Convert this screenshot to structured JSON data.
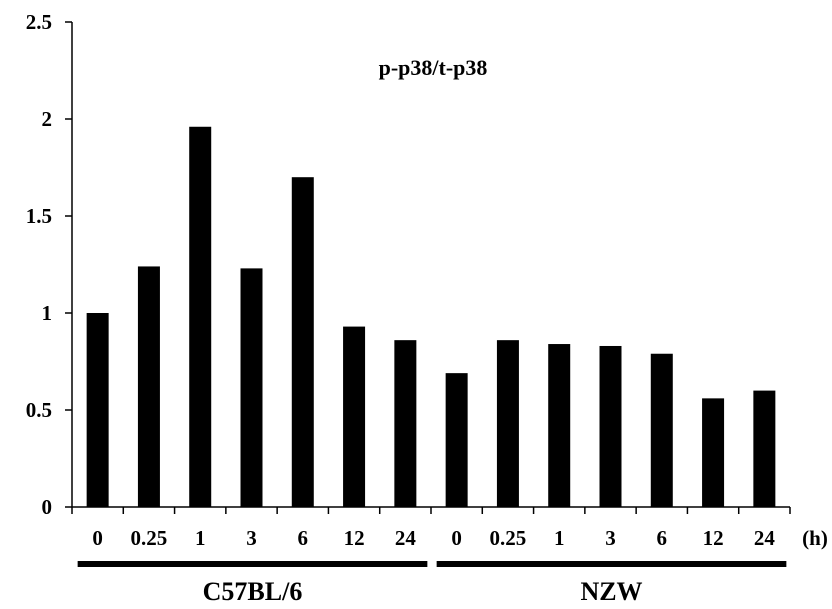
{
  "chart_data": {
    "type": "bar",
    "title": "p-p38/t-p38",
    "xlabel": "",
    "ylabel": "",
    "x_unit": "(h)",
    "ylim": [
      0,
      2.5
    ],
    "yticks": [
      "0",
      "0.5",
      "1",
      "1.5",
      "2",
      "2.5"
    ],
    "categories": [
      "0",
      "0.25",
      "1",
      "3",
      "6",
      "12",
      "24",
      "0",
      "0.25",
      "1",
      "3",
      "6",
      "12",
      "24"
    ],
    "values": [
      1.0,
      1.24,
      1.96,
      1.23,
      1.7,
      0.93,
      0.86,
      0.69,
      0.86,
      0.84,
      0.83,
      0.79,
      0.56,
      0.6
    ],
    "groups": [
      {
        "name": "C57BL/6",
        "start": 0,
        "end": 6
      },
      {
        "name": "NZW",
        "start": 7,
        "end": 13
      }
    ],
    "bar_color": "#000000",
    "grid": false,
    "legend": "none"
  }
}
